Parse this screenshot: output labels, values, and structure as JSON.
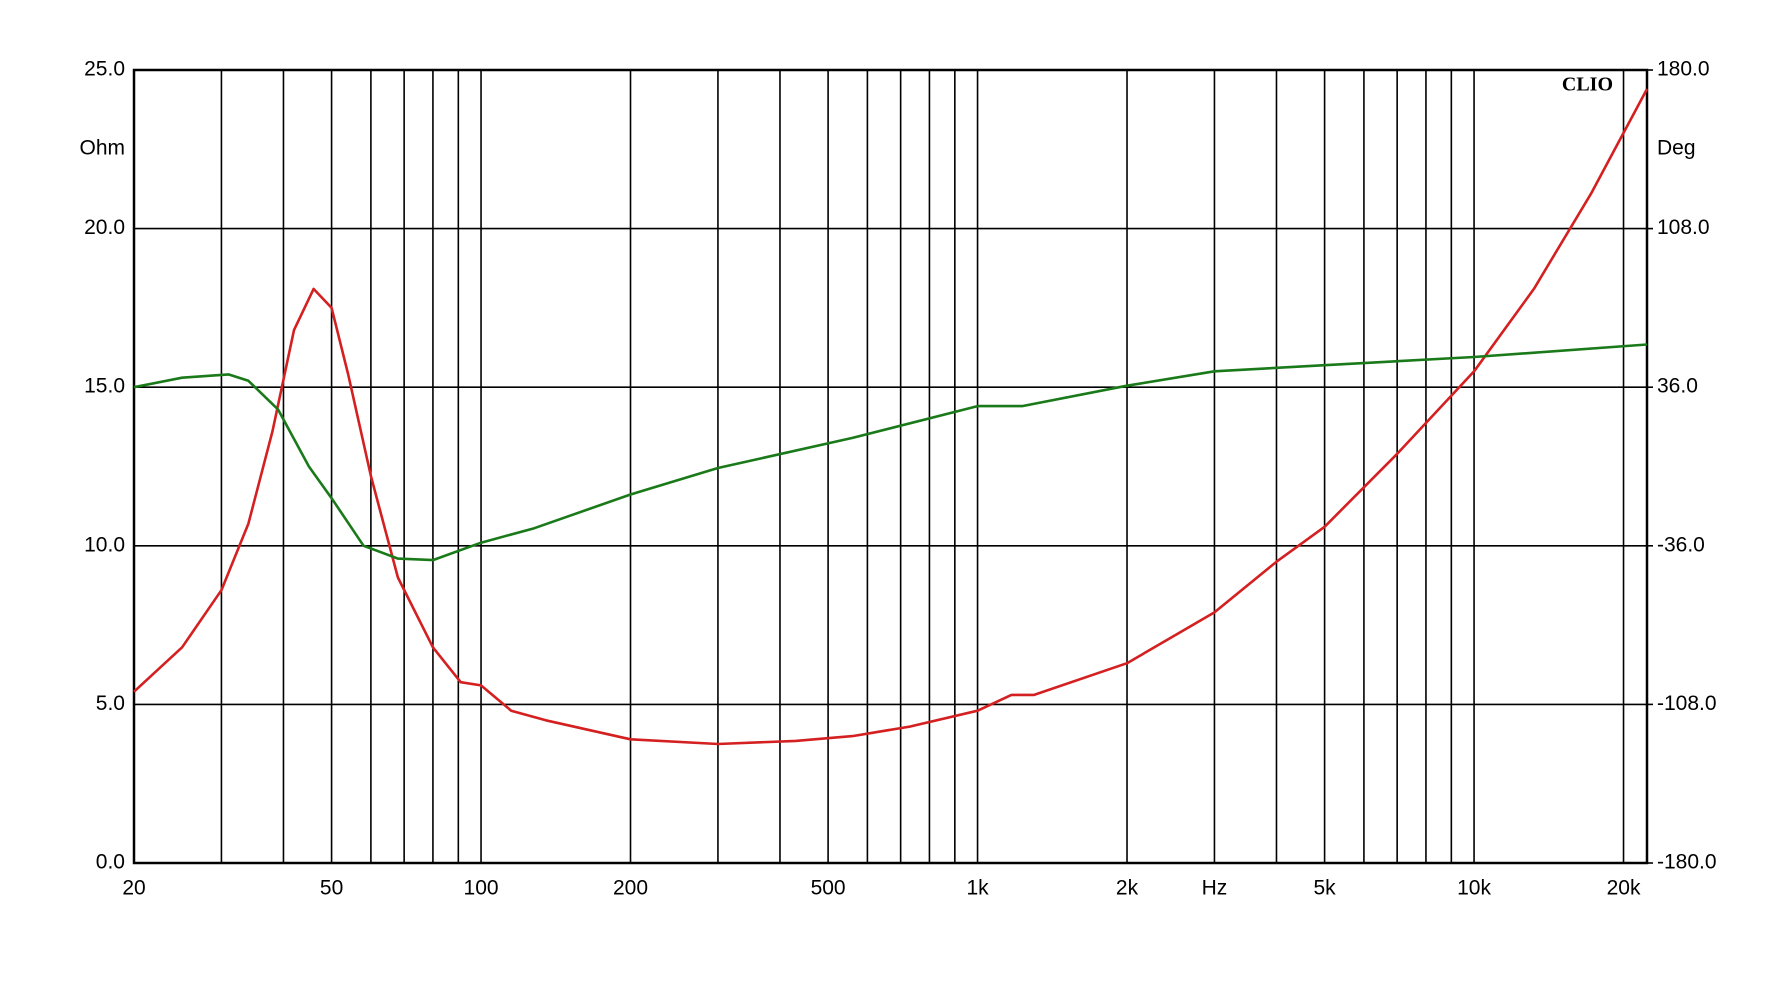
{
  "chart_data": {
    "type": "line",
    "watermark": "CLIO",
    "y_label": "Ohm",
    "y2_label": "Deg",
    "xscale": "log",
    "xlim": [
      20,
      22300
    ],
    "grid": true,
    "xticks": [
      20,
      50,
      100,
      200,
      500,
      {
        "value": 1000,
        "label": "1k"
      },
      {
        "value": 2000,
        "label": "2k"
      },
      {
        "value": 3000,
        "label": "Hz"
      },
      {
        "value": 5000,
        "label": "5k"
      },
      {
        "value": 10000,
        "label": "10k"
      },
      {
        "value": 20000,
        "label": "20k"
      }
    ],
    "xgrid_minor": [
      30,
      40,
      60,
      70,
      80,
      90,
      300,
      400,
      600,
      700,
      800,
      900,
      4000,
      6000,
      7000,
      8000,
      9000
    ],
    "ylim": [
      0,
      25
    ],
    "yticks": [
      {
        "value": 0,
        "label": "0.0"
      },
      {
        "value": 5,
        "label": "5.0"
      },
      {
        "value": 10,
        "label": "10.0"
      },
      {
        "value": 15,
        "label": "15.0"
      },
      {
        "value": 20,
        "label": "20.0"
      },
      {
        "value": 25,
        "label": "25.0"
      }
    ],
    "y2lim": [
      -180,
      180
    ],
    "y2ticks": [
      {
        "value": -180,
        "label": "-180.0"
      },
      {
        "value": -108,
        "label": "-108.0"
      },
      {
        "value": -36,
        "label": "-36.0"
      },
      {
        "value": 36,
        "label": "36.0"
      },
      {
        "value": 108,
        "label": "108.0"
      },
      {
        "value": 180,
        "label": "180.0"
      }
    ],
    "series": [
      {
        "color": "#d42020",
        "x": [
          20,
          25,
          30,
          34,
          38,
          42,
          46,
          50,
          54,
          60,
          68,
          80,
          91,
          100,
          115,
          135,
          200,
          300,
          430,
          560,
          730,
          1000,
          1170,
          1300,
          2000,
          3000,
          4000,
          5000,
          7000,
          10000,
          13200,
          17200,
          22300
        ],
        "values": [
          5.4,
          6.8,
          8.6,
          10.7,
          13.6,
          16.8,
          18.1,
          17.5,
          15.4,
          12.2,
          9.0,
          6.8,
          5.7,
          5.6,
          4.8,
          4.5,
          3.9,
          3.75,
          3.85,
          4.0,
          4.3,
          4.8,
          5.3,
          5.3,
          6.3,
          7.9,
          9.5,
          10.6,
          12.9,
          15.5,
          18.1,
          21.1,
          24.4
        ]
      },
      {
        "color": "#1a7a1a",
        "axis": "y2",
        "x": [
          20,
          25,
          31,
          34,
          39,
          45,
          50,
          58,
          68,
          80,
          100,
          128,
          200,
          300,
          560,
          1000,
          1230,
          2000,
          3000,
          5000,
          10000,
          22300
        ],
        "values": [
          36,
          40.3,
          41.8,
          38.9,
          25.9,
          0,
          -14.4,
          -36,
          -41.8,
          -42.5,
          -34.6,
          -28,
          -12.7,
          -0.7,
          13,
          27.4,
          27.4,
          36.7,
          43.2,
          46,
          49.7,
          55.4
        ]
      }
    ]
  }
}
